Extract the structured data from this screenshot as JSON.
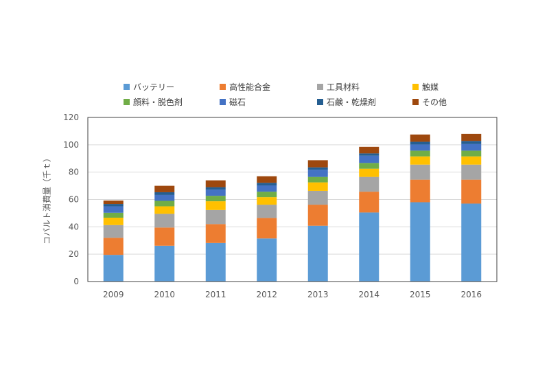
{
  "chart_data": {
    "type": "bar",
    "stacked": true,
    "title": "",
    "xlabel": "",
    "ylabel": "コバルト消費量（千ｔ）",
    "ylim": [
      0,
      120
    ],
    "yticks": [
      0,
      20,
      40,
      60,
      80,
      100,
      120
    ],
    "grid": true,
    "legend_position": "top",
    "categories": [
      "2009",
      "2010",
      "2011",
      "2012",
      "2013",
      "2014",
      "2015",
      "2016"
    ],
    "series": [
      {
        "name": "バッテリー",
        "color": "#5b9bd5",
        "values": [
          19.5,
          26.2,
          28.2,
          31.5,
          40.8,
          50.5,
          58.0,
          57.0
        ]
      },
      {
        "name": "高性能合金",
        "color": "#ed7d31",
        "values": [
          12.5,
          13.3,
          13.8,
          15.0,
          15.4,
          15.2,
          16.5,
          17.5
        ]
      },
      {
        "name": "工具材料",
        "color": "#a5a5a5",
        "values": [
          9.3,
          10.0,
          10.3,
          9.7,
          10.1,
          10.8,
          11.0,
          11.0
        ]
      },
      {
        "name": "触媒",
        "color": "#ffc000",
        "values": [
          5.4,
          5.5,
          6.4,
          5.5,
          6.2,
          6.0,
          6.0,
          6.0
        ]
      },
      {
        "name": "顔料・脱色剤",
        "color": "#70ad47",
        "values": [
          3.6,
          4.0,
          4.0,
          4.0,
          4.0,
          4.2,
          4.2,
          4.2
        ]
      },
      {
        "name": "磁石",
        "color": "#4472c4",
        "values": [
          4.7,
          4.3,
          4.5,
          4.6,
          5.2,
          5.3,
          4.5,
          4.8
        ]
      },
      {
        "name": "石鹸・乾燥剤",
        "color": "#255e91",
        "values": [
          1.7,
          2.0,
          1.8,
          1.9,
          1.8,
          1.7,
          2.0,
          2.3
        ]
      },
      {
        "name": "その他",
        "color": "#9e480e",
        "values": [
          2.5,
          4.7,
          5.0,
          4.8,
          5.2,
          4.8,
          5.3,
          5.2
        ]
      }
    ]
  }
}
